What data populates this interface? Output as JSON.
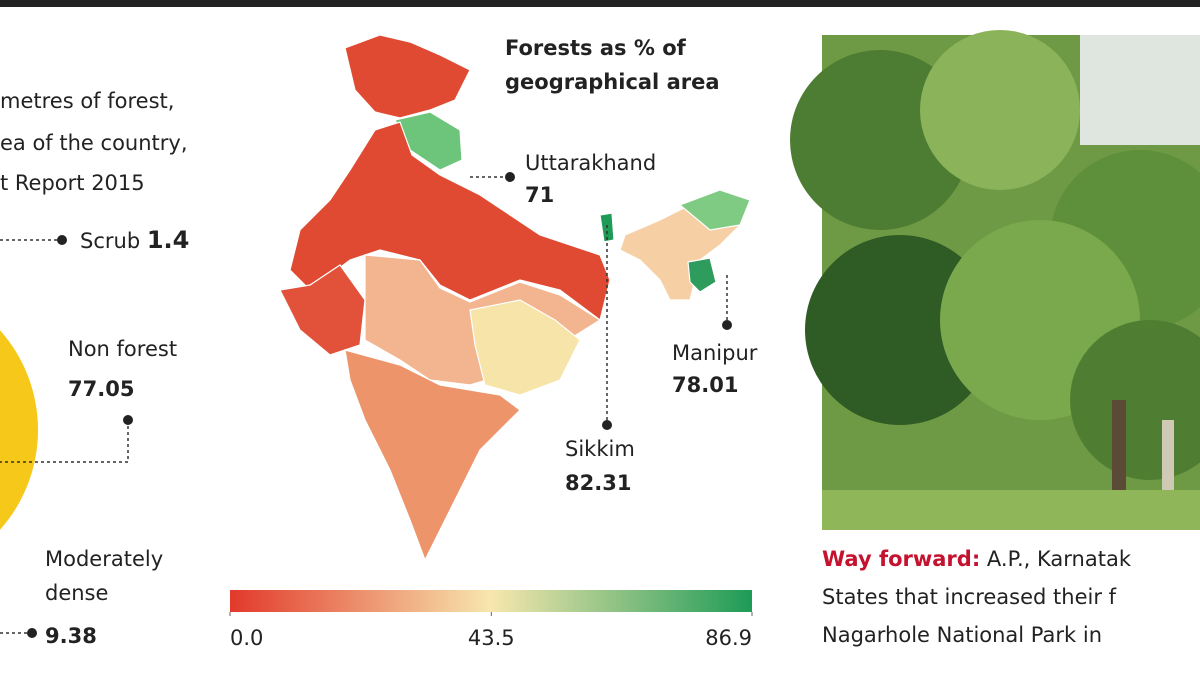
{
  "intro": {
    "lines": [
      "metres of forest,",
      "ea of the country,",
      "t Report 2015"
    ]
  },
  "pie_labels": [
    {
      "name": "Scrub",
      "value": 1.4
    },
    {
      "name": "Non forest",
      "value": 77.05
    },
    {
      "name": "Moderately",
      "name2": "dense",
      "value": 9.38
    }
  ],
  "map": {
    "title": [
      "Forests as % of",
      "geographical area"
    ],
    "callouts": [
      {
        "name": "Uttarakhand",
        "value": 71
      },
      {
        "name": "Sikkim",
        "value": 82.31
      },
      {
        "name": "Manipur",
        "value": 78.01
      }
    ],
    "colorbar": {
      "range": [
        0,
        86.9
      ],
      "colors": [
        "#e2392b",
        "#f7e7ae",
        "#1e9b57"
      ],
      "ticks": [
        {
          "value": 0,
          "label": "0.0"
        },
        43.5,
        86.9
      ]
    }
  },
  "caption": {
    "lead": "Way forward:",
    "lines": [
      "A.P., Karnatak",
      "States that increased their f",
      "Nagarhole National Park in"
    ]
  }
}
